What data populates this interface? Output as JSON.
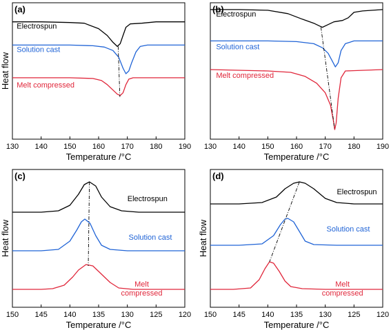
{
  "colors": {
    "black": "#000000",
    "blue": "#1f63d6",
    "red": "#e0263a"
  },
  "chart_data": [
    {
      "id": "a",
      "type": "line",
      "panel_label": "(a)",
      "xlabel": "Temperature /°C",
      "ylabel": "Heat flow",
      "xlim": [
        130,
        190
      ],
      "xticks": [
        "130",
        "140",
        "150",
        "160",
        "170",
        "180",
        "190"
      ],
      "reversed": false,
      "series": [
        {
          "name": "Electrospun",
          "color": "#000000",
          "points": [
            [
              130,
              0.86
            ],
            [
              140,
              0.86
            ],
            [
              150,
              0.855
            ],
            [
              155,
              0.85
            ],
            [
              160,
              0.81
            ],
            [
              163,
              0.76
            ],
            [
              165,
              0.71
            ],
            [
              166.5,
              0.68
            ],
            [
              167.5,
              0.7
            ],
            [
              168.5,
              0.76
            ],
            [
              169.5,
              0.82
            ],
            [
              171,
              0.845
            ],
            [
              175,
              0.85
            ],
            [
              180,
              0.86
            ],
            [
              190,
              0.86
            ]
          ]
        },
        {
          "name": "Solution cast",
          "color": "#1f63d6",
          "points": [
            [
              130,
              0.69
            ],
            [
              150,
              0.69
            ],
            [
              158,
              0.685
            ],
            [
              162,
              0.675
            ],
            [
              165,
              0.65
            ],
            [
              167,
              0.6
            ],
            [
              168.5,
              0.52
            ],
            [
              169.5,
              0.48
            ],
            [
              170.5,
              0.5
            ],
            [
              171.5,
              0.56
            ],
            [
              173,
              0.64
            ],
            [
              174.5,
              0.68
            ],
            [
              177,
              0.69
            ],
            [
              190,
              0.69
            ]
          ]
        },
        {
          "name": "Melt compressed",
          "color": "#e0263a",
          "points": [
            [
              130,
              0.45
            ],
            [
              150,
              0.45
            ],
            [
              158,
              0.445
            ],
            [
              161,
              0.43
            ],
            [
              163,
              0.4
            ],
            [
              165,
              0.36
            ],
            [
              166.5,
              0.33
            ],
            [
              167.5,
              0.32
            ],
            [
              168.5,
              0.34
            ],
            [
              169.5,
              0.4
            ],
            [
              170.5,
              0.44
            ],
            [
              172,
              0.45
            ],
            [
              190,
              0.45
            ]
          ]
        }
      ],
      "guide": [
        [
          166.8,
          0.68
        ],
        [
          167.4,
          0.31
        ]
      ],
      "label_positions": [
        [
          131.5,
          0.81
        ],
        [
          131.5,
          0.64
        ],
        [
          131.5,
          0.38
        ]
      ]
    },
    {
      "id": "b",
      "type": "line",
      "panel_label": "(b)",
      "xlabel": "Temperature /°C",
      "ylabel": "",
      "xlim": [
        130,
        190
      ],
      "xticks": [
        "130",
        "140",
        "150",
        "160",
        "170",
        "180",
        "190"
      ],
      "reversed": false,
      "series": [
        {
          "name": "Electrospun",
          "color": "#000000",
          "points": [
            [
              130,
              0.95
            ],
            [
              140,
              0.95
            ],
            [
              150,
              0.945
            ],
            [
              157,
              0.92
            ],
            [
              162,
              0.88
            ],
            [
              166,
              0.85
            ],
            [
              168,
              0.83
            ],
            [
              169,
              0.82
            ],
            [
              171,
              0.84
            ],
            [
              173,
              0.86
            ],
            [
              176,
              0.87
            ],
            [
              178,
              0.89
            ],
            [
              180,
              0.93
            ],
            [
              183,
              0.94
            ],
            [
              190,
              0.95
            ]
          ]
        },
        {
          "name": "Solution cast",
          "color": "#1f63d6",
          "points": [
            [
              130,
              0.72
            ],
            [
              150,
              0.72
            ],
            [
              160,
              0.715
            ],
            [
              166,
              0.7
            ],
            [
              169,
              0.67
            ],
            [
              171,
              0.63
            ],
            [
              172.5,
              0.57
            ],
            [
              173.5,
              0.53
            ],
            [
              174.5,
              0.56
            ],
            [
              175.5,
              0.65
            ],
            [
              177,
              0.7
            ],
            [
              180,
              0.72
            ],
            [
              190,
              0.72
            ]
          ]
        },
        {
          "name": "Melt compressed",
          "color": "#e0263a",
          "points": [
            [
              130,
              0.51
            ],
            [
              150,
              0.5
            ],
            [
              158,
              0.49
            ],
            [
              163,
              0.46
            ],
            [
              167,
              0.41
            ],
            [
              170,
              0.34
            ],
            [
              171.8,
              0.25
            ],
            [
              172.8,
              0.14
            ],
            [
              173.3,
              0.07
            ],
            [
              173.8,
              0.12
            ],
            [
              174.5,
              0.3
            ],
            [
              175.5,
              0.45
            ],
            [
              177,
              0.5
            ],
            [
              190,
              0.51
            ]
          ]
        }
      ],
      "guide": [
        [
          168.5,
          0.82
        ],
        [
          173.3,
          0.07
        ]
      ],
      "label_positions": [
        [
          132,
          0.9
        ],
        [
          132,
          0.66
        ],
        [
          132,
          0.45
        ]
      ]
    },
    {
      "id": "c",
      "type": "line",
      "panel_label": "(c)",
      "xlabel": "Temperature /°C",
      "ylabel": "Heat flow",
      "xlim": [
        150,
        120
      ],
      "xticks": [
        "150",
        "145",
        "140",
        "135",
        "130",
        "125",
        "120"
      ],
      "reversed": true,
      "series": [
        {
          "name": "Electrospun",
          "color": "#000000",
          "points": [
            [
              150,
              0.69
            ],
            [
              145,
              0.69
            ],
            [
              142,
              0.7
            ],
            [
              140,
              0.74
            ],
            [
              138.5,
              0.82
            ],
            [
              137.5,
              0.89
            ],
            [
              136.6,
              0.91
            ],
            [
              135.5,
              0.88
            ],
            [
              134.5,
              0.8
            ],
            [
              133,
              0.73
            ],
            [
              131,
              0.7
            ],
            [
              128,
              0.69
            ],
            [
              120,
              0.69
            ]
          ]
        },
        {
          "name": "Solution cast",
          "color": "#1f63d6",
          "points": [
            [
              150,
              0.41
            ],
            [
              145,
              0.41
            ],
            [
              142,
              0.42
            ],
            [
              140,
              0.48
            ],
            [
              138.8,
              0.56
            ],
            [
              138,
              0.62
            ],
            [
              137.4,
              0.64
            ],
            [
              136.5,
              0.61
            ],
            [
              135.5,
              0.52
            ],
            [
              134.5,
              0.45
            ],
            [
              133,
              0.42
            ],
            [
              130,
              0.41
            ],
            [
              120,
              0.41
            ]
          ]
        },
        {
          "name": "Melt compressed",
          "color": "#e0263a",
          "points": [
            [
              150,
              0.13
            ],
            [
              145,
              0.13
            ],
            [
              143,
              0.135
            ],
            [
              141,
              0.16
            ],
            [
              139.5,
              0.22
            ],
            [
              138.5,
              0.27
            ],
            [
              137.2,
              0.31
            ],
            [
              136,
              0.3
            ],
            [
              134.5,
              0.24
            ],
            [
              133,
              0.18
            ],
            [
              131.5,
              0.14
            ],
            [
              129,
              0.13
            ],
            [
              120,
              0.13
            ]
          ]
        }
      ],
      "guide": [
        [
          136.6,
          0.91
        ],
        [
          136.8,
          0.3
        ]
      ],
      "label_positions": [
        [
          126.5,
          0.77
        ],
        [
          126,
          0.49
        ],
        [
          127.5,
          0.15
        ]
      ],
      "label_lines": [
        [
          "Electrospun"
        ],
        [
          "Solution cast"
        ],
        [
          "Melt",
          "compressed"
        ]
      ]
    },
    {
      "id": "d",
      "type": "line",
      "panel_label": "(d)",
      "xlabel": "Temperature /°C",
      "ylabel": "Heat flow",
      "xlim": [
        150,
        120
      ],
      "xticks": [
        "150",
        "145",
        "140",
        "135",
        "130",
        "125",
        "120"
      ],
      "reversed": true,
      "series": [
        {
          "name": "Electrospun",
          "color": "#000000",
          "points": [
            [
              150,
              0.75
            ],
            [
              145,
              0.75
            ],
            [
              141,
              0.76
            ],
            [
              138.5,
              0.8
            ],
            [
              137,
              0.86
            ],
            [
              135.5,
              0.9
            ],
            [
              134.5,
              0.91
            ],
            [
              133.5,
              0.9
            ],
            [
              132,
              0.86
            ],
            [
              130,
              0.79
            ],
            [
              128,
              0.76
            ],
            [
              125,
              0.75
            ],
            [
              120,
              0.75
            ]
          ]
        },
        {
          "name": "Solution cast",
          "color": "#1f63d6",
          "points": [
            [
              150,
              0.45
            ],
            [
              145,
              0.45
            ],
            [
              141,
              0.46
            ],
            [
              139,
              0.52
            ],
            [
              137.8,
              0.6
            ],
            [
              137,
              0.64
            ],
            [
              136.5,
              0.645
            ],
            [
              135.5,
              0.62
            ],
            [
              134.5,
              0.55
            ],
            [
              133.5,
              0.48
            ],
            [
              132,
              0.455
            ],
            [
              128,
              0.45
            ],
            [
              120,
              0.45
            ]
          ]
        },
        {
          "name": "Melt compressed",
          "color": "#e0263a",
          "points": [
            [
              150,
              0.13
            ],
            [
              146,
              0.13
            ],
            [
              143,
              0.14
            ],
            [
              141.5,
              0.2
            ],
            [
              140.5,
              0.28
            ],
            [
              139.7,
              0.33
            ],
            [
              139,
              0.32
            ],
            [
              138,
              0.26
            ],
            [
              137,
              0.19
            ],
            [
              136,
              0.15
            ],
            [
              134,
              0.135
            ],
            [
              130,
              0.13
            ],
            [
              120,
              0.13
            ]
          ]
        }
      ],
      "guide": [
        [
          134.5,
          0.91
        ],
        [
          139.7,
          0.33
        ]
      ],
      "label_positions": [
        [
          124.5,
          0.82
        ],
        [
          126,
          0.55
        ],
        [
          127,
          0.15
        ]
      ],
      "label_lines": [
        [
          "Electrospun"
        ],
        [
          "Solution cast"
        ],
        [
          "Melt",
          "compressed"
        ]
      ]
    }
  ]
}
